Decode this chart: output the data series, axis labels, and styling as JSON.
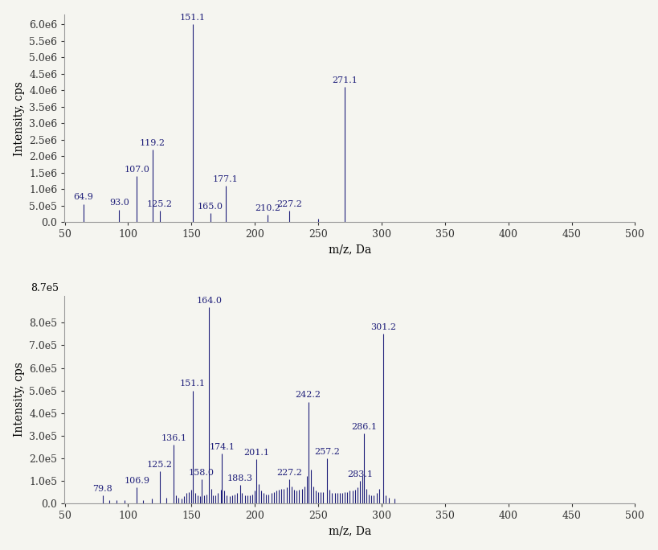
{
  "panel_a": {
    "peaks": [
      {
        "mz": 64.9,
        "intensity": 550000.0,
        "label": "64.9"
      },
      {
        "mz": 93.0,
        "intensity": 380000.0,
        "label": "93.0"
      },
      {
        "mz": 107.0,
        "intensity": 1400000.0,
        "label": "107.0"
      },
      {
        "mz": 119.2,
        "intensity": 2200000.0,
        "label": "119.2"
      },
      {
        "mz": 125.2,
        "intensity": 350000.0,
        "label": "125.2"
      },
      {
        "mz": 151.1,
        "intensity": 6000000.0,
        "label": "151.1"
      },
      {
        "mz": 165.0,
        "intensity": 280000.0,
        "label": "165.0"
      },
      {
        "mz": 177.1,
        "intensity": 1100000.0,
        "label": "177.1"
      },
      {
        "mz": 210.2,
        "intensity": 220000.0,
        "label": "210.2"
      },
      {
        "mz": 227.2,
        "intensity": 350000.0,
        "label": "227.2"
      },
      {
        "mz": 250.0,
        "intensity": 100000.0,
        "label": ""
      },
      {
        "mz": 271.1,
        "intensity": 4100000.0,
        "label": "271.1"
      }
    ],
    "ylim": [
      0,
      6300000.0
    ],
    "yticks": [
      0.0,
      500000.0,
      1000000.0,
      1500000.0,
      2000000.0,
      2500000.0,
      3000000.0,
      3500000.0,
      4000000.0,
      4500000.0,
      5000000.0,
      5500000.0,
      6000000.0
    ],
    "ytick_labels": [
      "0.0",
      "5.0e5",
      "1.0e6",
      "1.5e6",
      "2.0e6",
      "2.5e6",
      "3.0e6",
      "3.5e6",
      "4.0e6",
      "4.5e6",
      "5.0e6",
      "5.5e6",
      "6.0e6"
    ],
    "xlim": [
      50,
      500
    ],
    "xlabel": "m/z, Da",
    "ylabel": "Intensity, cps"
  },
  "panel_b": {
    "peaks": [
      {
        "mz": 79.8,
        "intensity": 35000.0,
        "label": "79.8"
      },
      {
        "mz": 85.0,
        "intensity": 15000.0,
        "label": ""
      },
      {
        "mz": 91.0,
        "intensity": 15000.0,
        "label": ""
      },
      {
        "mz": 97.0,
        "intensity": 15000.0,
        "label": ""
      },
      {
        "mz": 106.9,
        "intensity": 70000.0,
        "label": "106.9"
      },
      {
        "mz": 112.0,
        "intensity": 15000.0,
        "label": ""
      },
      {
        "mz": 119.0,
        "intensity": 20000.0,
        "label": ""
      },
      {
        "mz": 125.2,
        "intensity": 140000.0,
        "label": "125.2"
      },
      {
        "mz": 130.0,
        "intensity": 25000.0,
        "label": ""
      },
      {
        "mz": 136.1,
        "intensity": 260000.0,
        "label": "136.1"
      },
      {
        "mz": 138.0,
        "intensity": 35000.0,
        "label": ""
      },
      {
        "mz": 140.0,
        "intensity": 25000.0,
        "label": ""
      },
      {
        "mz": 142.0,
        "intensity": 20000.0,
        "label": ""
      },
      {
        "mz": 144.0,
        "intensity": 30000.0,
        "label": ""
      },
      {
        "mz": 146.0,
        "intensity": 45000.0,
        "label": ""
      },
      {
        "mz": 148.0,
        "intensity": 50000.0,
        "label": ""
      },
      {
        "mz": 150.0,
        "intensity": 60000.0,
        "label": ""
      },
      {
        "mz": 151.1,
        "intensity": 500000.0,
        "label": "151.1"
      },
      {
        "mz": 153.0,
        "intensity": 45000.0,
        "label": ""
      },
      {
        "mz": 155.0,
        "intensity": 35000.0,
        "label": ""
      },
      {
        "mz": 157.0,
        "intensity": 30000.0,
        "label": ""
      },
      {
        "mz": 158.0,
        "intensity": 105000.0,
        "label": "158.0"
      },
      {
        "mz": 160.0,
        "intensity": 35000.0,
        "label": ""
      },
      {
        "mz": 162.0,
        "intensity": 40000.0,
        "label": ""
      },
      {
        "mz": 164.0,
        "intensity": 870000.0,
        "label": "164.0"
      },
      {
        "mz": 165.5,
        "intensity": 65000.0,
        "label": ""
      },
      {
        "mz": 167.0,
        "intensity": 35000.0,
        "label": ""
      },
      {
        "mz": 169.0,
        "intensity": 35000.0,
        "label": ""
      },
      {
        "mz": 171.0,
        "intensity": 45000.0,
        "label": ""
      },
      {
        "mz": 173.0,
        "intensity": 60000.0,
        "label": ""
      },
      {
        "mz": 174.1,
        "intensity": 220000.0,
        "label": "174.1"
      },
      {
        "mz": 176.0,
        "intensity": 55000.0,
        "label": ""
      },
      {
        "mz": 178.0,
        "intensity": 35000.0,
        "label": ""
      },
      {
        "mz": 180.0,
        "intensity": 30000.0,
        "label": ""
      },
      {
        "mz": 182.0,
        "intensity": 35000.0,
        "label": ""
      },
      {
        "mz": 184.0,
        "intensity": 40000.0,
        "label": ""
      },
      {
        "mz": 186.0,
        "intensity": 45000.0,
        "label": ""
      },
      {
        "mz": 188.3,
        "intensity": 80000.0,
        "label": "188.3"
      },
      {
        "mz": 190.0,
        "intensity": 45000.0,
        "label": ""
      },
      {
        "mz": 192.0,
        "intensity": 35000.0,
        "label": ""
      },
      {
        "mz": 194.0,
        "intensity": 35000.0,
        "label": ""
      },
      {
        "mz": 196.0,
        "intensity": 35000.0,
        "label": ""
      },
      {
        "mz": 198.0,
        "intensity": 40000.0,
        "label": ""
      },
      {
        "mz": 200.0,
        "intensity": 55000.0,
        "label": ""
      },
      {
        "mz": 201.1,
        "intensity": 195000.0,
        "label": "201.1"
      },
      {
        "mz": 203.0,
        "intensity": 85000.0,
        "label": ""
      },
      {
        "mz": 205.0,
        "intensity": 55000.0,
        "label": ""
      },
      {
        "mz": 207.0,
        "intensity": 45000.0,
        "label": ""
      },
      {
        "mz": 209.0,
        "intensity": 40000.0,
        "label": ""
      },
      {
        "mz": 211.0,
        "intensity": 40000.0,
        "label": ""
      },
      {
        "mz": 213.0,
        "intensity": 45000.0,
        "label": ""
      },
      {
        "mz": 215.0,
        "intensity": 50000.0,
        "label": ""
      },
      {
        "mz": 217.0,
        "intensity": 55000.0,
        "label": ""
      },
      {
        "mz": 219.0,
        "intensity": 60000.0,
        "label": ""
      },
      {
        "mz": 221.0,
        "intensity": 65000.0,
        "label": ""
      },
      {
        "mz": 223.0,
        "intensity": 65000.0,
        "label": ""
      },
      {
        "mz": 225.0,
        "intensity": 70000.0,
        "label": ""
      },
      {
        "mz": 227.2,
        "intensity": 105000.0,
        "label": "227.2"
      },
      {
        "mz": 229.0,
        "intensity": 75000.0,
        "label": ""
      },
      {
        "mz": 231.0,
        "intensity": 60000.0,
        "label": ""
      },
      {
        "mz": 233.0,
        "intensity": 55000.0,
        "label": ""
      },
      {
        "mz": 235.0,
        "intensity": 60000.0,
        "label": ""
      },
      {
        "mz": 237.0,
        "intensity": 65000.0,
        "label": ""
      },
      {
        "mz": 239.0,
        "intensity": 75000.0,
        "label": ""
      },
      {
        "mz": 241.0,
        "intensity": 120000.0,
        "label": ""
      },
      {
        "mz": 242.2,
        "intensity": 450000.0,
        "label": "242.2"
      },
      {
        "mz": 244.0,
        "intensity": 150000.0,
        "label": ""
      },
      {
        "mz": 246.0,
        "intensity": 75000.0,
        "label": ""
      },
      {
        "mz": 248.0,
        "intensity": 55000.0,
        "label": ""
      },
      {
        "mz": 250.0,
        "intensity": 50000.0,
        "label": ""
      },
      {
        "mz": 252.0,
        "intensity": 50000.0,
        "label": ""
      },
      {
        "mz": 254.0,
        "intensity": 50000.0,
        "label": ""
      },
      {
        "mz": 257.2,
        "intensity": 200000.0,
        "label": "257.2"
      },
      {
        "mz": 259.0,
        "intensity": 60000.0,
        "label": ""
      },
      {
        "mz": 261.0,
        "intensity": 45000.0,
        "label": ""
      },
      {
        "mz": 263.0,
        "intensity": 45000.0,
        "label": ""
      },
      {
        "mz": 265.0,
        "intensity": 45000.0,
        "label": ""
      },
      {
        "mz": 267.0,
        "intensity": 45000.0,
        "label": ""
      },
      {
        "mz": 269.0,
        "intensity": 45000.0,
        "label": ""
      },
      {
        "mz": 271.0,
        "intensity": 50000.0,
        "label": ""
      },
      {
        "mz": 273.0,
        "intensity": 50000.0,
        "label": ""
      },
      {
        "mz": 275.0,
        "intensity": 55000.0,
        "label": ""
      },
      {
        "mz": 277.0,
        "intensity": 55000.0,
        "label": ""
      },
      {
        "mz": 279.0,
        "intensity": 60000.0,
        "label": ""
      },
      {
        "mz": 281.0,
        "intensity": 70000.0,
        "label": ""
      },
      {
        "mz": 283.1,
        "intensity": 100000.0,
        "label": "283.1"
      },
      {
        "mz": 285.0,
        "intensity": 120000.0,
        "label": ""
      },
      {
        "mz": 286.1,
        "intensity": 310000.0,
        "label": "286.1"
      },
      {
        "mz": 288.0,
        "intensity": 65000.0,
        "label": ""
      },
      {
        "mz": 290.0,
        "intensity": 40000.0,
        "label": ""
      },
      {
        "mz": 292.0,
        "intensity": 35000.0,
        "label": ""
      },
      {
        "mz": 294.0,
        "intensity": 35000.0,
        "label": ""
      },
      {
        "mz": 296.0,
        "intensity": 45000.0,
        "label": ""
      },
      {
        "mz": 298.0,
        "intensity": 65000.0,
        "label": ""
      },
      {
        "mz": 301.2,
        "intensity": 750000.0,
        "label": "301.2"
      },
      {
        "mz": 303.0,
        "intensity": 35000.0,
        "label": ""
      },
      {
        "mz": 306.0,
        "intensity": 25000.0,
        "label": ""
      },
      {
        "mz": 310.0,
        "intensity": 20000.0,
        "label": ""
      }
    ],
    "ylim": [
      0,
      920000.0
    ],
    "yticks": [
      0.0,
      100000.0,
      200000.0,
      300000.0,
      400000.0,
      500000.0,
      600000.0,
      700000.0,
      800000.0
    ],
    "ytick_labels": [
      "0.0",
      "1.0e5",
      "2.0e5",
      "3.0e5",
      "4.0e5",
      "5.0e5",
      "6.0e5",
      "7.0e5",
      "8.0e5"
    ],
    "top_label": "8.7e5",
    "xlim": [
      50,
      500
    ],
    "xlabel": "m/z, Da",
    "ylabel": "Intensity, cps"
  },
  "line_color": "#1f1f7a",
  "label_color": "#1f1f7a",
  "background_color": "#f5f5f0",
  "font_size_ticks": 9,
  "font_size_label": 10,
  "font_size_peak_label": 8
}
